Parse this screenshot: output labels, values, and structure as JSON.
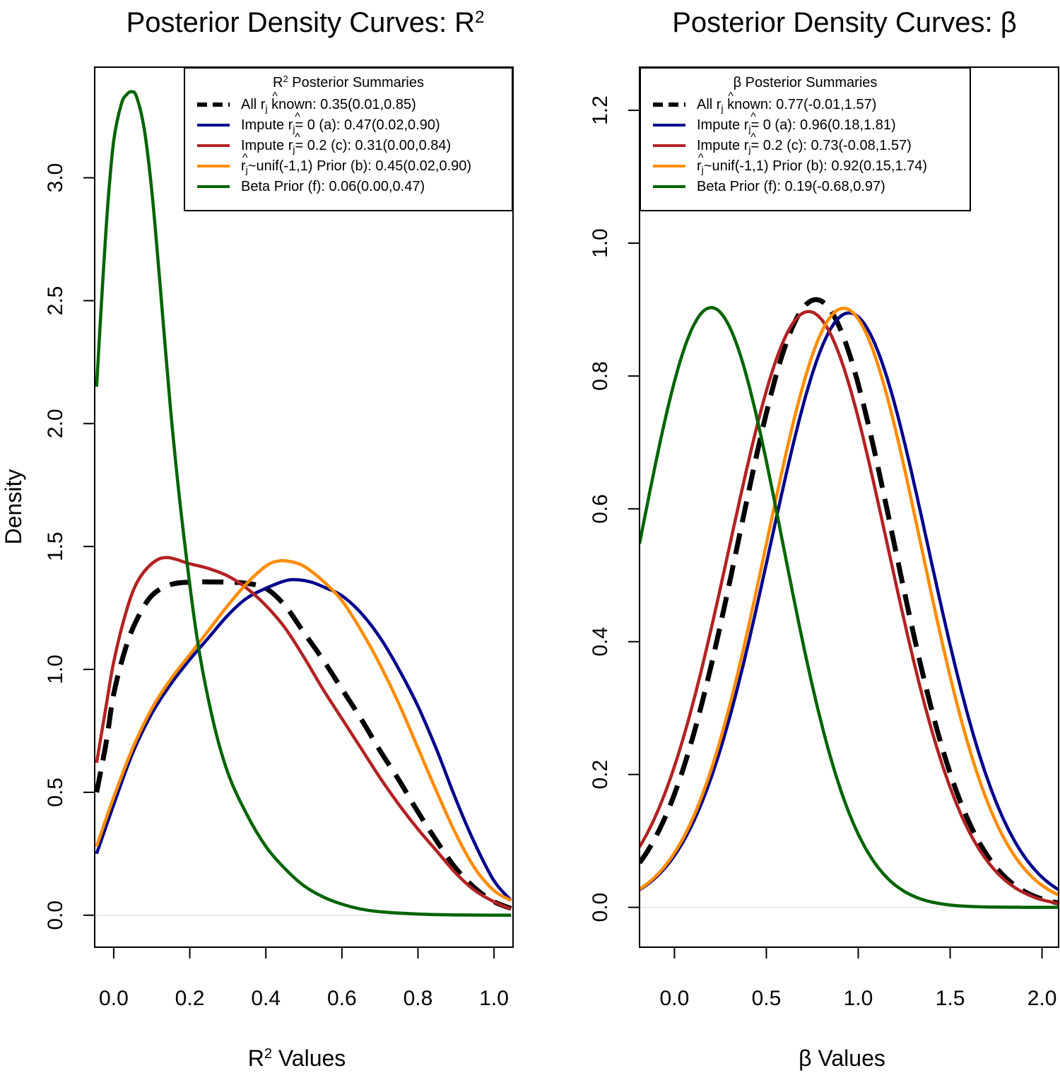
{
  "chart_data": [
    {
      "type": "line",
      "title": "Posterior Density Curves: R",
      "title_sup": "2",
      "xlabel": "R",
      "xlabel_sup": "2",
      "xlabel_tail": " Values",
      "ylabel": "Density",
      "xlim": [
        -0.05,
        1.05
      ],
      "ylim": [
        -0.13,
        3.45
      ],
      "xticks": [
        "0.0",
        "0.2",
        "0.4",
        "0.6",
        "0.8",
        "1.0"
      ],
      "xtick_values": [
        0,
        0.2,
        0.4,
        0.6,
        0.8,
        1.0
      ],
      "yticks": [
        "0.0",
        "0.5",
        "1.0",
        "1.5",
        "2.0",
        "2.5",
        "3.0"
      ],
      "ytick_values": [
        0,
        0.5,
        1.0,
        1.5,
        2.0,
        2.5,
        3.0
      ],
      "legend": {
        "position": "top-right",
        "title_pre": "R",
        "title_sup": "2",
        "title_post": " Posterior Summaries",
        "entries": [
          {
            "pre": "All ",
            "sym": "r",
            "sub": "j",
            "post": " known: 0.35(0.01,0.85)",
            "color": "#000000",
            "dash": true
          },
          {
            "pre": "Impute ",
            "sym": "r",
            "sub": "j",
            "post": "= 0 (a): 0.47(0.02,0.90)",
            "color": "#00008B",
            "dash": false
          },
          {
            "pre": "Impute ",
            "sym": "r",
            "sub": "j",
            "post": "= 0.2 (c): 0.31(0.00,0.84)",
            "color": "#B22222",
            "dash": false
          },
          {
            "pre": "",
            "sym": "r",
            "sub": "j",
            "post": "~unif(-1,1) Prior (b): 0.45(0.02,0.90)",
            "color": "#FF8C00",
            "dash": false
          },
          {
            "pre": "Beta Prior (f): 0.06(0.00,0.47)",
            "sym": "",
            "sub": "",
            "post": "",
            "color": "#006400",
            "dash": false
          }
        ]
      },
      "series": [
        {
          "name": "All r_j known",
          "color": "#000000",
          "dash": true,
          "x": [
            -0.045,
            -0.02,
            0.0,
            0.03,
            0.06,
            0.1,
            0.15,
            0.2,
            0.25,
            0.3,
            0.35,
            0.4,
            0.45,
            0.5,
            0.55,
            0.6,
            0.65,
            0.7,
            0.75,
            0.8,
            0.85,
            0.9,
            0.95,
            1.0,
            1.045
          ],
          "y": [
            0.5,
            0.7,
            0.9,
            1.08,
            1.2,
            1.3,
            1.345,
            1.355,
            1.356,
            1.355,
            1.35,
            1.33,
            1.26,
            1.15,
            1.04,
            0.92,
            0.8,
            0.67,
            0.55,
            0.42,
            0.3,
            0.19,
            0.11,
            0.055,
            0.028
          ]
        },
        {
          "name": "Impute r_j = 0 (a)",
          "color": "#00008B",
          "dash": false,
          "x": [
            -0.045,
            0.0,
            0.05,
            0.1,
            0.15,
            0.2,
            0.25,
            0.3,
            0.35,
            0.4,
            0.45,
            0.48,
            0.52,
            0.56,
            0.6,
            0.65,
            0.7,
            0.75,
            0.8,
            0.85,
            0.9,
            0.95,
            1.0,
            1.045
          ],
          "y": [
            0.25,
            0.45,
            0.66,
            0.82,
            0.94,
            1.04,
            1.13,
            1.22,
            1.29,
            1.33,
            1.36,
            1.365,
            1.355,
            1.33,
            1.3,
            1.23,
            1.13,
            1.0,
            0.85,
            0.67,
            0.47,
            0.29,
            0.14,
            0.06
          ]
        },
        {
          "name": "Impute r_j = 0.2 (c)",
          "color": "#B22222",
          "dash": false,
          "x": [
            -0.045,
            -0.02,
            0.0,
            0.03,
            0.06,
            0.1,
            0.14,
            0.2,
            0.25,
            0.3,
            0.35,
            0.4,
            0.45,
            0.5,
            0.55,
            0.6,
            0.65,
            0.7,
            0.75,
            0.8,
            0.85,
            0.9,
            0.95,
            1.0,
            1.045
          ],
          "y": [
            0.62,
            0.85,
            1.03,
            1.22,
            1.35,
            1.43,
            1.455,
            1.43,
            1.41,
            1.38,
            1.33,
            1.26,
            1.17,
            1.05,
            0.92,
            0.8,
            0.68,
            0.56,
            0.45,
            0.35,
            0.26,
            0.17,
            0.1,
            0.055,
            0.025
          ]
        },
        {
          "name": "r_j ~ unif(-1,1) Prior (b)",
          "color": "#FF8C00",
          "dash": false,
          "x": [
            -0.045,
            0.0,
            0.05,
            0.1,
            0.15,
            0.2,
            0.25,
            0.3,
            0.35,
            0.4,
            0.43,
            0.46,
            0.5,
            0.55,
            0.6,
            0.65,
            0.7,
            0.75,
            0.8,
            0.85,
            0.9,
            0.95,
            1.0,
            1.045
          ],
          "y": [
            0.28,
            0.48,
            0.68,
            0.84,
            0.96,
            1.06,
            1.16,
            1.26,
            1.35,
            1.42,
            1.44,
            1.44,
            1.42,
            1.36,
            1.28,
            1.16,
            1.02,
            0.86,
            0.68,
            0.5,
            0.33,
            0.19,
            0.1,
            0.06
          ]
        },
        {
          "name": "Beta Prior (f)",
          "color": "#006400",
          "dash": false,
          "x": [
            -0.045,
            -0.03,
            -0.015,
            0.0,
            0.02,
            0.035,
            0.047,
            0.06,
            0.08,
            0.1,
            0.12,
            0.15,
            0.18,
            0.22,
            0.26,
            0.3,
            0.35,
            0.4,
            0.45,
            0.5,
            0.55,
            0.6,
            0.65,
            0.7,
            0.8,
            0.9,
            1.045
          ],
          "y": [
            2.15,
            2.55,
            2.9,
            3.15,
            3.3,
            3.34,
            3.35,
            3.33,
            3.2,
            2.95,
            2.6,
            2.05,
            1.6,
            1.12,
            0.8,
            0.58,
            0.41,
            0.28,
            0.19,
            0.12,
            0.075,
            0.045,
            0.025,
            0.014,
            0.005,
            0.001,
            0.0
          ]
        }
      ]
    },
    {
      "type": "line",
      "title": "Posterior Density Curves: β",
      "title_sup": "",
      "xlabel": "β Values",
      "xlabel_sup": "",
      "xlabel_tail": "",
      "ylabel": "",
      "xlim": [
        -0.19,
        2.09
      ],
      "ylim": [
        -0.06,
        1.265
      ],
      "xticks": [
        "0.0",
        "0.5",
        "1.0",
        "1.5",
        "2.0"
      ],
      "xtick_values": [
        0,
        0.5,
        1.0,
        1.5,
        2.0
      ],
      "yticks": [
        "0.0",
        "0.2",
        "0.4",
        "0.6",
        "0.8",
        "1.0",
        "1.2"
      ],
      "ytick_values": [
        0,
        0.2,
        0.4,
        0.6,
        0.8,
        1.0,
        1.2
      ],
      "legend": {
        "position": "top-left",
        "title_pre": "β",
        "title_sup": "",
        "title_post": " Posterior Summaries",
        "entries": [
          {
            "pre": "All ",
            "sym": "r",
            "sub": "j",
            "post": " known: 0.77(-0.01,1.57)",
            "color": "#000000",
            "dash": true
          },
          {
            "pre": "Impute ",
            "sym": "r",
            "sub": "j",
            "post": "= 0 (a): 0.96(0.18,1.81)",
            "color": "#00008B",
            "dash": false
          },
          {
            "pre": "Impute ",
            "sym": "r",
            "sub": "j",
            "post": "= 0.2 (c): 0.73(-0.08,1.57)",
            "color": "#B22222",
            "dash": false
          },
          {
            "pre": "",
            "sym": "r",
            "sub": "j",
            "post": "~unif(-1,1) Prior (b): 0.92(0.15,1.74)",
            "color": "#FF8C00",
            "dash": false
          },
          {
            "pre": "Beta Prior (f): 0.19(-0.68,0.97)",
            "sym": "",
            "sub": "",
            "post": "",
            "color": "#006400",
            "dash": false
          }
        ]
      },
      "series": [
        {
          "name": "All r_j known",
          "color": "#000000",
          "dash": true,
          "gauss": {
            "mu": 0.77,
            "sigma": 0.42,
            "peak": 0.915,
            "xmin": -0.19,
            "xmax": 2.09
          }
        },
        {
          "name": "Impute r_j = 0 (a)",
          "color": "#00008B",
          "dash": false,
          "gauss": {
            "mu": 0.95,
            "sigma": 0.43,
            "peak": 0.895,
            "xmin": -0.19,
            "xmax": 2.09
          }
        },
        {
          "name": "Impute r_j = 0.2 (c)",
          "color": "#B22222",
          "dash": false,
          "gauss": {
            "mu": 0.73,
            "sigma": 0.43,
            "peak": 0.897,
            "xmin": -0.19,
            "xmax": 2.09
          }
        },
        {
          "name": "r_j ~ unif(-1,1) Prior (b)",
          "color": "#FF8C00",
          "dash": false,
          "gauss": {
            "mu": 0.92,
            "sigma": 0.42,
            "peak": 0.902,
            "xmin": -0.19,
            "xmax": 2.09
          }
        },
        {
          "name": "Beta Prior (f)",
          "color": "#006400",
          "dash": false,
          "gauss": {
            "mu": 0.2,
            "sigma": 0.39,
            "peak": 0.903,
            "xmin": -0.19,
            "xmax": 2.09
          }
        }
      ]
    }
  ]
}
